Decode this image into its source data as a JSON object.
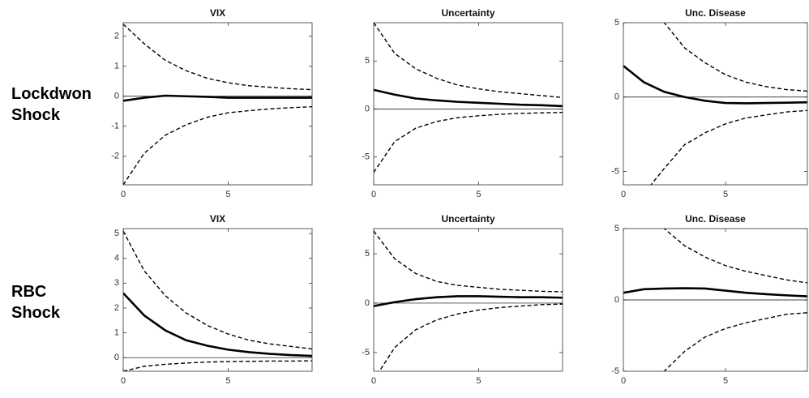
{
  "row_labels": [
    [
      "Lockdwon",
      "Shock"
    ],
    [
      "RBC",
      "Shock"
    ]
  ],
  "chart_data": [
    {
      "type": "line",
      "title": "VIX",
      "x": [
        0,
        1,
        2,
        3,
        4,
        5,
        6,
        7,
        8,
        9
      ],
      "xlim": [
        0,
        9
      ],
      "xticks": [
        0,
        5
      ],
      "ylim": [
        -2.95,
        2.45
      ],
      "yticks": [
        -2,
        -1,
        0,
        1,
        2
      ],
      "series": [
        {
          "color": "#000000",
          "style": "solid",
          "values": [
            -0.15,
            -0.05,
            0.02,
            0,
            -0.02,
            -0.05,
            -0.05,
            -0.05,
            -0.05,
            -0.05
          ]
        },
        {
          "color": "#000000",
          "style": "dashed",
          "values": [
            2.4,
            1.75,
            1.2,
            0.85,
            0.6,
            0.45,
            0.35,
            0.3,
            0.25,
            0.22
          ]
        },
        {
          "color": "#000000",
          "style": "dashed",
          "values": [
            -2.95,
            -1.9,
            -1.3,
            -0.95,
            -0.7,
            -0.55,
            -0.48,
            -0.42,
            -0.38,
            -0.35
          ]
        }
      ]
    },
    {
      "type": "line",
      "title": "Uncertainty",
      "x": [
        0,
        1,
        2,
        3,
        4,
        5,
        6,
        7,
        8,
        9
      ],
      "xlim": [
        0,
        9
      ],
      "xticks": [
        0,
        5
      ],
      "ylim": [
        -7.9,
        9
      ],
      "yticks": [
        -5,
        0,
        5
      ],
      "series": [
        {
          "color": "#000000",
          "style": "solid",
          "values": [
            2,
            1.5,
            1.1,
            0.9,
            0.75,
            0.65,
            0.55,
            0.45,
            0.4,
            0.3
          ]
        },
        {
          "color": "#000000",
          "style": "dashed",
          "values": [
            9,
            5.8,
            4.2,
            3.2,
            2.5,
            2.1,
            1.8,
            1.6,
            1.4,
            1.2
          ]
        },
        {
          "color": "#000000",
          "style": "dashed",
          "values": [
            -6.6,
            -3.4,
            -2,
            -1.3,
            -0.9,
            -0.7,
            -0.55,
            -0.45,
            -0.4,
            -0.35
          ]
        }
      ]
    },
    {
      "type": "line",
      "title": "Unc. Disease",
      "x": [
        0,
        1,
        2,
        3,
        4,
        5,
        6,
        7,
        8,
        9
      ],
      "xlim": [
        0,
        9
      ],
      "xticks": [
        0,
        5
      ],
      "ylim": [
        -5.9,
        5
      ],
      "yticks": [
        -5,
        0,
        5
      ],
      "series": [
        {
          "color": "#000000",
          "style": "solid",
          "values": [
            2.1,
            1.0,
            0.35,
            0,
            -0.25,
            -0.4,
            -0.42,
            -0.4,
            -0.38,
            -0.35
          ]
        },
        {
          "color": "#000000",
          "style": "dashed",
          "values": [
            9,
            6.8,
            5,
            3.3,
            2.3,
            1.5,
            1.0,
            0.7,
            0.5,
            0.4
          ]
        },
        {
          "color": "#000000",
          "style": "dashed",
          "values": [
            -9,
            -6.5,
            -4.8,
            -3.2,
            -2.4,
            -1.8,
            -1.4,
            -1.2,
            -1.0,
            -0.9
          ]
        }
      ]
    },
    {
      "type": "line",
      "title": "VIX",
      "x": [
        0,
        1,
        2,
        3,
        4,
        5,
        6,
        7,
        8,
        9
      ],
      "xlim": [
        0,
        9
      ],
      "xticks": [
        0,
        5
      ],
      "ylim": [
        -0.55,
        5.2
      ],
      "yticks": [
        0,
        1,
        2,
        3,
        4,
        5
      ],
      "series": [
        {
          "color": "#000000",
          "style": "solid",
          "values": [
            2.6,
            1.7,
            1.1,
            0.7,
            0.48,
            0.32,
            0.22,
            0.15,
            0.1,
            0.07
          ]
        },
        {
          "color": "#000000",
          "style": "dashed",
          "values": [
            5.1,
            3.5,
            2.5,
            1.8,
            1.3,
            0.95,
            0.7,
            0.55,
            0.45,
            0.35
          ]
        },
        {
          "color": "#000000",
          "style": "dashed",
          "values": [
            -0.55,
            -0.35,
            -0.27,
            -0.22,
            -0.18,
            -0.16,
            -0.15,
            -0.14,
            -0.14,
            -0.13
          ]
        }
      ]
    },
    {
      "type": "line",
      "title": "Uncertainty",
      "x": [
        0,
        1,
        2,
        3,
        4,
        5,
        6,
        7,
        8,
        9
      ],
      "xlim": [
        0,
        9
      ],
      "xticks": [
        0,
        5
      ],
      "ylim": [
        -6.9,
        7.55
      ],
      "yticks": [
        -5,
        0,
        5
      ],
      "series": [
        {
          "color": "#000000",
          "style": "solid",
          "values": [
            -0.3,
            0.1,
            0.4,
            0.6,
            0.7,
            0.7,
            0.65,
            0.6,
            0.6,
            0.55
          ]
        },
        {
          "color": "#000000",
          "style": "dashed",
          "values": [
            7.3,
            4.5,
            3.0,
            2.2,
            1.8,
            1.6,
            1.4,
            1.3,
            1.2,
            1.15
          ]
        },
        {
          "color": "#000000",
          "style": "dashed",
          "values": [
            -7.8,
            -4.5,
            -2.7,
            -1.7,
            -1.1,
            -0.7,
            -0.45,
            -0.3,
            -0.15,
            -0.1
          ]
        }
      ]
    },
    {
      "type": "line",
      "title": "Unc. Disease",
      "x": [
        0,
        1,
        2,
        3,
        4,
        5,
        6,
        7,
        8,
        9
      ],
      "xlim": [
        0,
        9
      ],
      "xticks": [
        0,
        5
      ],
      "ylim": [
        -5,
        5
      ],
      "yticks": [
        -5,
        0,
        5
      ],
      "series": [
        {
          "color": "#000000",
          "style": "solid",
          "values": [
            0.5,
            0.75,
            0.8,
            0.82,
            0.8,
            0.65,
            0.5,
            0.4,
            0.32,
            0.25
          ]
        },
        {
          "color": "#000000",
          "style": "dashed",
          "values": [
            8,
            6,
            5,
            3.8,
            3.0,
            2.4,
            2.0,
            1.7,
            1.4,
            1.2
          ]
        },
        {
          "color": "#000000",
          "style": "dashed",
          "values": [
            -8,
            -6.5,
            -5,
            -3.6,
            -2.6,
            -2.0,
            -1.6,
            -1.3,
            -1.0,
            -0.9
          ]
        }
      ]
    }
  ]
}
